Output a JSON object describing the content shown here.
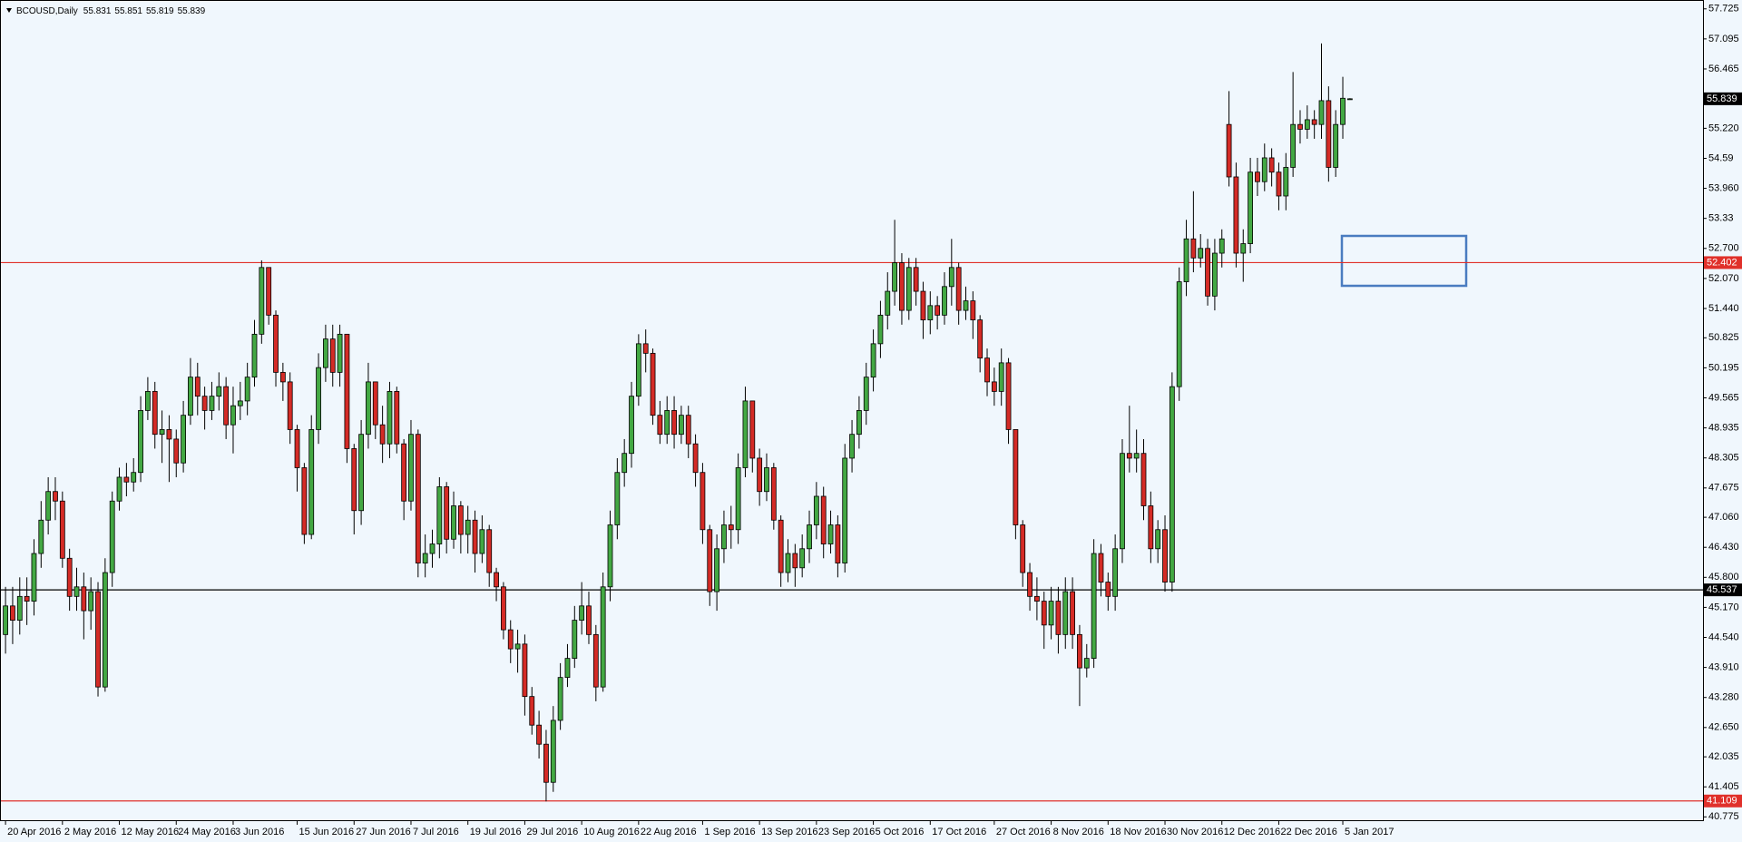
{
  "chart_data": {
    "type": "candlestick",
    "title": "BCOUSD,Daily",
    "up_color": "#43a843",
    "down_color": "#d42b26",
    "categories": [
      "20 Apr 2016",
      null,
      null,
      null,
      null,
      null,
      null,
      null,
      "2 May 2016",
      null,
      null,
      null,
      null,
      null,
      null,
      null,
      "12 May 2016",
      null,
      null,
      null,
      null,
      null,
      null,
      null,
      "24 May 2016",
      null,
      null,
      null,
      null,
      null,
      null,
      null,
      "3 Jun 2016",
      null,
      null,
      null,
      null,
      null,
      null,
      null,
      null,
      "15 Jun 2016",
      null,
      null,
      null,
      null,
      null,
      null,
      null,
      "27 Jun 2016",
      null,
      null,
      null,
      null,
      null,
      null,
      null,
      "7 Jul 2016",
      null,
      null,
      null,
      null,
      null,
      null,
      null,
      "19 Jul 2016",
      null,
      null,
      null,
      null,
      null,
      null,
      null,
      "29 Jul 2016",
      null,
      null,
      null,
      null,
      null,
      null,
      null,
      "10 Aug 2016",
      null,
      null,
      null,
      null,
      null,
      null,
      null,
      "22 Aug 2016",
      null,
      null,
      null,
      null,
      null,
      null,
      null,
      null,
      "1 Sep 2016",
      null,
      null,
      null,
      null,
      null,
      null,
      null,
      "13 Sep 2016",
      null,
      null,
      null,
      null,
      null,
      null,
      null,
      "23 Sep 2016",
      null,
      null,
      null,
      null,
      null,
      null,
      null,
      "5 Oct 2016",
      null,
      null,
      null,
      null,
      null,
      null,
      null,
      "17 Oct 2016",
      null,
      null,
      null,
      null,
      null,
      null,
      null,
      null,
      "27 Oct 2016",
      null,
      null,
      null,
      null,
      null,
      null,
      null,
      "8 Nov 2016",
      null,
      null,
      null,
      null,
      null,
      null,
      null,
      "18 Nov 2016",
      null,
      null,
      null,
      null,
      null,
      null,
      null,
      "30 Nov 2016",
      null,
      null,
      null,
      null,
      null,
      null,
      null,
      "12 Dec 2016",
      null,
      null,
      null,
      null,
      null,
      null,
      null,
      "22 Dec 2016",
      null,
      null,
      null,
      null,
      null,
      null,
      null,
      null,
      "5 Jan 2017",
      null
    ],
    "open": [
      44.6,
      45.2,
      44.9,
      45.4,
      45.3,
      46.3,
      47.0,
      47.6,
      47.4,
      46.2,
      45.4,
      45.6,
      45.1,
      45.5,
      43.5,
      45.9,
      47.4,
      47.9,
      47.8,
      48.0,
      49.3,
      49.7,
      48.8,
      48.9,
      48.7,
      48.2,
      49.2,
      50.0,
      49.6,
      49.3,
      49.6,
      49.8,
      49.0,
      49.4,
      49.5,
      50.0,
      50.9,
      52.3,
      51.3,
      50.1,
      49.9,
      48.9,
      48.1,
      46.7,
      48.9,
      50.2,
      50.8,
      50.1,
      50.9,
      48.5,
      47.2,
      48.8,
      49.9,
      49.0,
      48.6,
      49.7,
      48.6,
      47.4,
      48.8,
      46.1,
      46.3,
      46.5,
      47.7,
      46.6,
      47.3,
      46.7,
      47.0,
      46.3,
      46.8,
      45.9,
      45.6,
      44.7,
      44.3,
      44.4,
      43.3,
      42.7,
      42.3,
      41.5,
      42.8,
      43.7,
      44.1,
      44.9,
      45.2,
      44.6,
      43.5,
      45.6,
      46.9,
      48.0,
      48.4,
      49.6,
      50.7,
      50.5,
      49.2,
      48.8,
      49.3,
      48.8,
      49.2,
      48.6,
      48.0,
      46.8,
      45.5,
      46.4,
      46.9,
      46.8,
      48.1,
      49.5,
      48.3,
      47.6,
      48.1,
      47.0,
      45.9,
      46.3,
      46.0,
      46.4,
      46.9,
      47.5,
      46.5,
      46.9,
      46.1,
      48.3,
      48.8,
      49.3,
      50.0,
      50.7,
      51.3,
      51.8,
      52.4,
      51.4,
      52.3,
      51.8,
      51.2,
      51.5,
      51.3,
      51.9,
      52.3,
      51.4,
      51.6,
      51.2,
      50.4,
      49.9,
      49.7,
      50.3,
      48.9,
      46.9,
      45.9,
      45.4,
      45.3,
      44.8,
      45.3,
      44.6,
      45.5,
      44.6,
      43.9,
      44.1,
      46.3,
      45.7,
      45.4,
      46.4,
      48.4,
      48.3,
      48.4,
      47.3,
      46.4,
      46.8,
      45.7,
      49.8,
      52.0,
      52.9,
      52.5,
      52.7,
      51.7,
      52.6,
      55.3,
      54.2,
      52.6,
      52.8,
      54.3,
      54.1,
      54.6,
      54.3,
      53.8,
      54.4,
      55.3,
      55.2,
      55.4,
      55.3,
      55.8,
      54.4,
      55.3,
      55.831
    ],
    "high": [
      45.6,
      45.6,
      45.8,
      45.8,
      46.6,
      47.4,
      47.9,
      47.9,
      47.6,
      46.4,
      46.0,
      45.9,
      45.8,
      45.7,
      46.2,
      47.6,
      48.1,
      48.2,
      48.3,
      49.6,
      50.0,
      49.9,
      49.3,
      49.2,
      48.9,
      49.5,
      50.4,
      50.3,
      49.8,
      49.9,
      50.1,
      50.0,
      49.8,
      49.9,
      50.3,
      51.2,
      52.45,
      52.3,
      51.4,
      50.3,
      50.1,
      49.0,
      48.2,
      49.2,
      50.5,
      51.1,
      51.1,
      51.1,
      50.9,
      48.6,
      49.1,
      50.3,
      49.9,
      49.4,
      49.9,
      49.8,
      48.7,
      49.1,
      48.9,
      46.7,
      46.8,
      47.9,
      47.8,
      47.6,
      47.4,
      47.3,
      47.2,
      47.1,
      46.9,
      46.0,
      45.7,
      44.9,
      44.7,
      44.6,
      43.5,
      43.0,
      42.6,
      43.1,
      44.0,
      44.4,
      45.2,
      45.7,
      45.5,
      44.8,
      45.9,
      47.2,
      48.3,
      48.7,
      49.9,
      50.9,
      51.0,
      50.6,
      49.5,
      49.6,
      49.6,
      49.4,
      49.4,
      48.8,
      48.2,
      46.9,
      46.7,
      47.2,
      47.3,
      48.4,
      49.8,
      49.5,
      48.5,
      48.4,
      48.2,
      47.1,
      46.6,
      46.5,
      46.7,
      47.2,
      47.8,
      47.7,
      47.2,
      47.1,
      48.6,
      49.1,
      49.6,
      50.3,
      51.0,
      51.6,
      52.2,
      53.3,
      52.6,
      52.5,
      52.5,
      52.0,
      51.8,
      51.7,
      52.2,
      52.9,
      52.4,
      51.9,
      51.8,
      51.3,
      50.6,
      50.2,
      50.6,
      50.4,
      48.9,
      47.0,
      46.1,
      45.8,
      45.5,
      45.6,
      45.6,
      45.8,
      45.8,
      44.8,
      44.4,
      46.6,
      46.5,
      45.9,
      46.7,
      48.7,
      49.4,
      48.9,
      48.7,
      47.6,
      47.0,
      47.1,
      50.1,
      52.3,
      53.3,
      53.9,
      53.0,
      52.9,
      52.9,
      53.1,
      56.0,
      54.5,
      53.1,
      54.6,
      54.6,
      54.9,
      54.8,
      54.5,
      54.7,
      56.4,
      55.6,
      55.7,
      55.6,
      57.0,
      56.1,
      55.6,
      56.3,
      55.851
    ],
    "low": [
      44.2,
      44.4,
      44.6,
      44.8,
      45.0,
      46.0,
      46.7,
      47.0,
      46.0,
      45.1,
      45.1,
      44.5,
      44.7,
      43.3,
      43.4,
      45.6,
      47.2,
      47.5,
      47.6,
      47.8,
      49.1,
      48.5,
      48.2,
      47.8,
      47.9,
      48.0,
      49.0,
      49.2,
      48.9,
      49.1,
      49.3,
      48.7,
      48.4,
      49.1,
      49.2,
      49.8,
      50.7,
      51.1,
      49.8,
      49.5,
      48.6,
      47.6,
      46.5,
      46.6,
      48.6,
      49.9,
      49.8,
      49.8,
      48.2,
      46.7,
      46.9,
      48.5,
      48.7,
      48.2,
      48.3,
      48.4,
      47.0,
      47.2,
      45.8,
      45.8,
      46.0,
      46.2,
      46.3,
      46.4,
      46.3,
      46.3,
      45.9,
      46.1,
      45.6,
      45.3,
      44.5,
      44.0,
      43.8,
      42.9,
      42.5,
      42.0,
      41.1,
      41.3,
      42.6,
      43.5,
      43.9,
      44.6,
      44.4,
      43.2,
      43.4,
      45.3,
      46.6,
      47.7,
      48.1,
      49.4,
      50.1,
      49.0,
      48.6,
      48.6,
      48.5,
      48.6,
      48.3,
      47.7,
      46.5,
      45.2,
      45.1,
      46.1,
      46.4,
      46.5,
      47.9,
      48.0,
      47.3,
      47.4,
      46.8,
      45.6,
      45.7,
      45.6,
      45.8,
      46.1,
      46.6,
      46.2,
      46.3,
      45.8,
      45.9,
      48.0,
      48.5,
      49.0,
      49.7,
      50.4,
      51.0,
      51.5,
      51.1,
      51.2,
      51.5,
      50.8,
      50.9,
      51.0,
      51.1,
      51.5,
      51.1,
      51.2,
      50.8,
      50.1,
      49.6,
      49.4,
      49.4,
      48.6,
      46.6,
      45.6,
      45.1,
      44.9,
      44.3,
      44.5,
      44.2,
      44.3,
      44.3,
      43.1,
      43.7,
      43.9,
      45.4,
      45.1,
      45.1,
      46.1,
      48.0,
      48.0,
      47.0,
      46.1,
      46.1,
      45.5,
      45.5,
      49.5,
      51.7,
      52.2,
      52.3,
      51.5,
      51.4,
      52.3,
      54.0,
      52.3,
      52.0,
      52.6,
      53.8,
      53.9,
      54.0,
      53.5,
      53.5,
      54.2,
      54.9,
      55.0,
      55.0,
      55.0,
      54.1,
      54.2,
      55.0,
      55.819
    ],
    "close": [
      45.2,
      44.9,
      45.4,
      45.3,
      46.3,
      47.0,
      47.6,
      47.4,
      46.2,
      45.4,
      45.6,
      45.1,
      45.5,
      43.5,
      45.9,
      47.4,
      47.9,
      47.8,
      48.0,
      49.3,
      49.7,
      48.8,
      48.9,
      48.7,
      48.2,
      49.2,
      50.0,
      49.6,
      49.3,
      49.6,
      49.8,
      49.0,
      49.4,
      49.5,
      50.0,
      50.9,
      52.3,
      51.3,
      50.1,
      49.9,
      48.9,
      48.1,
      46.7,
      48.9,
      50.2,
      50.8,
      50.1,
      50.9,
      48.5,
      47.2,
      48.8,
      49.9,
      49.0,
      48.6,
      49.7,
      48.6,
      47.4,
      48.8,
      46.1,
      46.3,
      46.5,
      47.7,
      46.6,
      47.3,
      46.7,
      47.0,
      46.3,
      46.8,
      45.9,
      45.6,
      44.7,
      44.3,
      44.4,
      43.3,
      42.7,
      42.3,
      41.5,
      42.8,
      43.7,
      44.1,
      44.9,
      45.2,
      44.6,
      43.5,
      45.6,
      46.9,
      48.0,
      48.4,
      49.6,
      50.7,
      50.5,
      49.2,
      48.8,
      49.3,
      48.8,
      49.2,
      48.6,
      48.0,
      46.8,
      45.5,
      46.4,
      46.9,
      46.8,
      48.1,
      49.5,
      48.3,
      47.6,
      48.1,
      47.0,
      45.9,
      46.3,
      46.0,
      46.4,
      46.9,
      47.5,
      46.5,
      46.9,
      46.1,
      48.3,
      48.8,
      49.3,
      50.0,
      50.7,
      51.3,
      51.8,
      52.4,
      51.4,
      52.3,
      51.8,
      51.2,
      51.5,
      51.3,
      51.9,
      52.3,
      51.4,
      51.6,
      51.2,
      50.4,
      49.9,
      49.7,
      50.3,
      48.9,
      46.9,
      45.9,
      45.4,
      45.3,
      44.8,
      45.3,
      44.6,
      45.5,
      44.6,
      43.9,
      44.1,
      46.3,
      45.7,
      45.4,
      46.4,
      48.4,
      48.3,
      48.4,
      47.3,
      46.4,
      46.8,
      45.7,
      49.8,
      52.0,
      52.9,
      52.5,
      52.7,
      51.7,
      52.6,
      52.9,
      54.2,
      52.6,
      52.8,
      54.3,
      54.1,
      54.6,
      54.3,
      53.8,
      54.4,
      55.3,
      55.2,
      55.4,
      55.3,
      55.8,
      54.4,
      55.3,
      55.85,
      55.839
    ],
    "ylim": [
      40.705,
      57.911
    ],
    "yticks": [
      57.725,
      57.095,
      56.465,
      {
        "value": 55.22,
        "label": "55.220"
      },
      54.59,
      {
        "value": 53.96,
        "label": "53.960"
      },
      53.33,
      {
        "value": 52.7,
        "label": "52.700"
      },
      {
        "value": 52.07,
        "label": "52.070"
      },
      {
        "value": 51.44,
        "label": "51.440"
      },
      50.825,
      50.195,
      49.565,
      48.935,
      48.305,
      47.675,
      {
        "value": 47.06,
        "label": "47.060"
      },
      {
        "value": 46.43,
        "label": "46.430"
      },
      {
        "value": 45.8,
        "label": "45.800"
      },
      {
        "value": 45.17,
        "label": "45.170"
      },
      {
        "value": 44.54,
        "label": "44.540"
      },
      {
        "value": 43.91,
        "label": "43.910"
      },
      {
        "value": 43.28,
        "label": "43.280"
      },
      {
        "value": 42.65,
        "label": "42.650"
      },
      42.035,
      41.405,
      40.775
    ],
    "hlines": [
      {
        "value": 52.402,
        "color": "#e0302a"
      },
      {
        "value": 45.537,
        "color": "#000000"
      },
      {
        "value": 41.109,
        "color": "#e0302a"
      }
    ],
    "grid": false
  }
}
